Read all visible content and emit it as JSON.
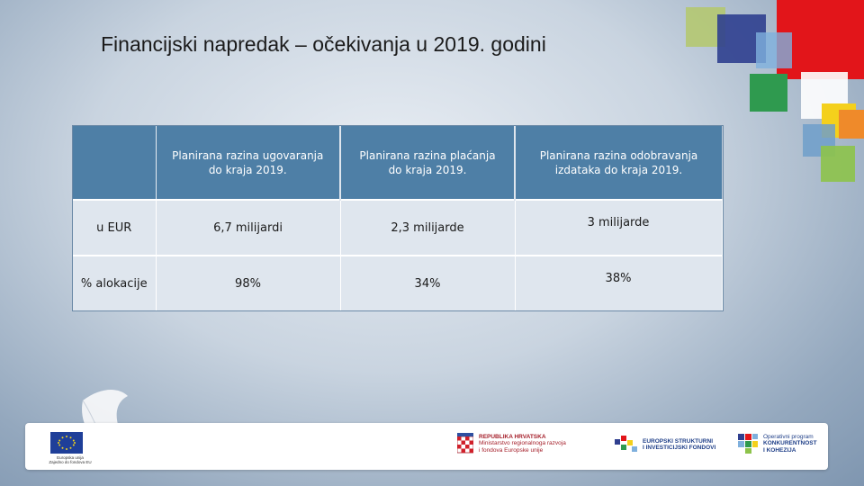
{
  "slide": {
    "title": "Financijski napredak – očekivanja u 2019. godini"
  },
  "table": {
    "columns": [
      "",
      "Planirana razina ugovaranja do kraja 2019.",
      "Planirana razina plaćanja do kraja 2019.",
      "Planirana razina odobravanja izdataka do kraja 2019."
    ],
    "rows": [
      {
        "label": "u EUR",
        "cells": [
          "6,7 milijardi",
          "2,3 milijarde",
          "3 milijarde"
        ]
      },
      {
        "label": "% alokacije",
        "cells": [
          "98%",
          "34%",
          "38%"
        ]
      }
    ]
  },
  "footer": {
    "eu_caption_line1": "Europska unija",
    "eu_caption_line2": "Zajedno do fondova EU",
    "ministry_line1": "REPUBLIKA HRVATSKA",
    "ministry_line2": "Ministarstvo regionalnoga razvoja",
    "ministry_line3": "i fondova Europske unije",
    "esif_line1": "EUROPSKI STRUKTURNI",
    "esif_line2": "I INVESTICIJSKI FONDOVI",
    "op_line1": "Operativni program",
    "op_line2": "KONKURENTNOST",
    "op_line3": "I KOHEZIJA"
  },
  "colors": {
    "table_header": "#4e7fa6",
    "table_cell": "#dfe6ee",
    "deco_red": "#e2151a",
    "deco_navy": "#2f3f8f",
    "deco_green": "#2f9a4f",
    "deco_yellow": "#f4d01c",
    "deco_orange": "#ef8a2a",
    "deco_light_green": "#8dc34a"
  }
}
